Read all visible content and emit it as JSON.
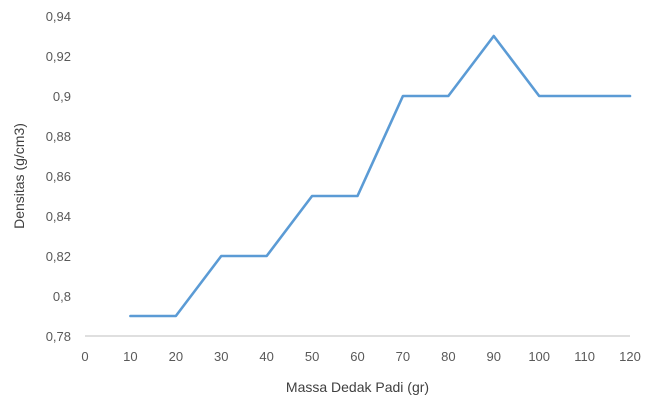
{
  "chart_data": {
    "type": "line",
    "title": "",
    "xlabel": "Massa Dedak Padi (gr)",
    "ylabel": "Densitas (g/cm3)",
    "x": [
      10,
      20,
      30,
      40,
      50,
      60,
      70,
      80,
      90,
      100,
      110,
      120
    ],
    "series": [
      {
        "name": "",
        "values": [
          0.79,
          0.79,
          0.82,
          0.82,
          0.85,
          0.85,
          0.9,
          0.9,
          0.93,
          0.9,
          0.9,
          0.9
        ],
        "color": "#5B9BD5"
      }
    ],
    "xlim": [
      0,
      120
    ],
    "ylim": [
      0.78,
      0.94
    ],
    "x_ticks": [
      "0",
      "10",
      "20",
      "30",
      "40",
      "50",
      "60",
      "70",
      "80",
      "90",
      "100",
      "110",
      "120"
    ],
    "y_ticks": [
      "0,78",
      "0,8",
      "0,82",
      "0,84",
      "0,86",
      "0,88",
      "0,9",
      "0,92",
      "0,94"
    ],
    "grid": false,
    "legend": "none",
    "colors": {
      "axis": "#BFBFBF",
      "tick_text": "#595959",
      "title_text": "#404040"
    }
  }
}
